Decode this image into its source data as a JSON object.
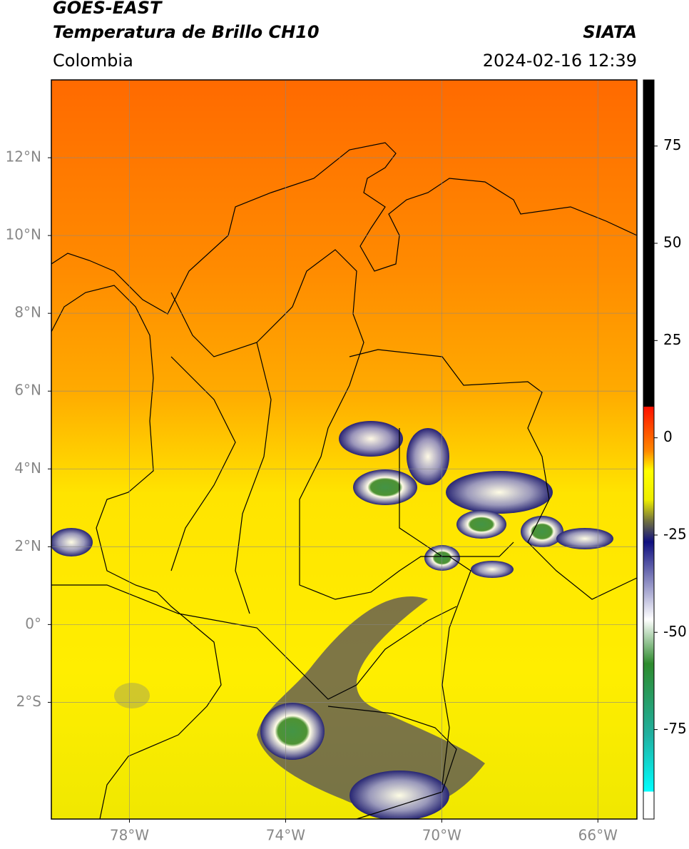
{
  "header": {
    "title": "GOES-EAST",
    "subtitle": "Temperatura de Brillo CH10",
    "region": "Colombia",
    "source": "SIATA",
    "datetime": "2024-02-16 12:39"
  },
  "map": {
    "latlim": [
      -5,
      14
    ],
    "lonlim": [
      -80,
      -65
    ],
    "lat_ticks": [
      {
        "value": 12,
        "label": "12°N"
      },
      {
        "value": 10,
        "label": "10°N"
      },
      {
        "value": 8,
        "label": "8°N"
      },
      {
        "value": 6,
        "label": "6°N"
      },
      {
        "value": 4,
        "label": "4°N"
      },
      {
        "value": 2,
        "label": "2°N"
      },
      {
        "value": 0,
        "label": "0°"
      },
      {
        "value": -2,
        "label": "2°S"
      }
    ],
    "lon_ticks": [
      {
        "value": -78,
        "label": "78°W"
      },
      {
        "value": -74,
        "label": "74°W"
      },
      {
        "value": -70,
        "label": "70°W"
      },
      {
        "value": -66,
        "label": "66°W"
      }
    ]
  },
  "colorbar": {
    "lim": [
      -98,
      92
    ],
    "ticks": [
      75,
      50,
      25,
      0,
      -25,
      -50,
      -75
    ]
  }
}
